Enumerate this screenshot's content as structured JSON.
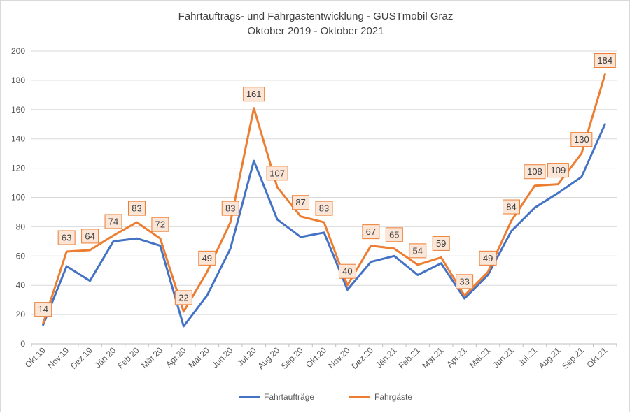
{
  "chart_data": {
    "type": "line",
    "title": "Fahrtauftrags- und Fahrgastentwicklung - GUSTmobil Graz",
    "subtitle": "Oktober 2019 - Oktober 2021",
    "xlabel": "",
    "ylabel": "",
    "ylim": [
      0,
      200
    ],
    "yticks": [
      0,
      20,
      40,
      60,
      80,
      100,
      120,
      140,
      160,
      180,
      200
    ],
    "grid": true,
    "legend_position": "bottom",
    "categories": [
      "Okt.19",
      "Nov.19",
      "Dez.19",
      "Jän.20",
      "Feb.20",
      "Mär.20",
      "Apr.20",
      "Mai.20",
      "Jun.20",
      "Jul.20",
      "Aug.20",
      "Sep.20",
      "Okt.20",
      "Nov.20",
      "Dez.20",
      "Jän.21",
      "Feb.21",
      "Mär.21",
      "Apr.21",
      "Mai.21",
      "Jun.21",
      "Jul.21",
      "Aug.21",
      "Sep.21",
      "Okt.21"
    ],
    "series": [
      {
        "name": "Fahrtaufträge",
        "color": "#4472c4",
        "values": [
          13,
          53,
          43,
          70,
          72,
          67,
          12,
          33,
          65,
          125,
          85,
          73,
          76,
          37,
          56,
          60,
          47,
          55,
          31,
          47,
          77,
          93,
          103,
          114,
          150
        ],
        "data_labels": false
      },
      {
        "name": "Fahrgäste",
        "color": "#ed7d31",
        "values": [
          14,
          63,
          64,
          74,
          83,
          72,
          22,
          49,
          83,
          161,
          107,
          87,
          83,
          40,
          67,
          65,
          54,
          59,
          33,
          49,
          84,
          108,
          109,
          130,
          184
        ],
        "data_labels": true
      }
    ]
  }
}
